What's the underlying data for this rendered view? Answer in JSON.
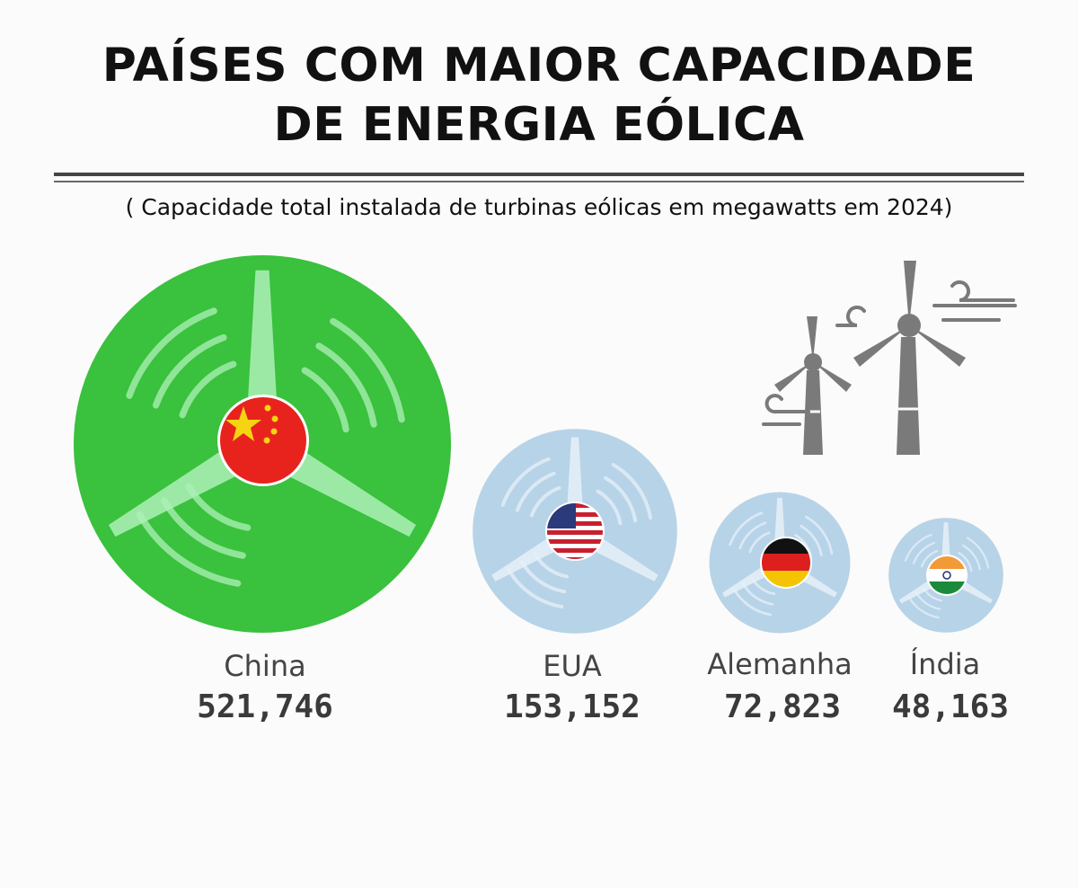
{
  "header": {
    "title_line1": "PAÍSES COM MAIOR CAPACIDADE",
    "title_line2": "DE ENERGIA EÓLICA",
    "subtitle": "( Capacidade total instalada de turbinas eólicas em megawatts em 2024)"
  },
  "chart_data": {
    "type": "bubble",
    "title": "PAÍSES COM MAIOR CAPACIDADE DE ENERGIA EÓLICA",
    "subtitle": "( Capacidade total instalada de turbinas eólicas em megawatts em 2024)",
    "unit": "megawatts",
    "categories": [
      "China",
      "EUA",
      "Alemanha",
      "Índia"
    ],
    "values": [
      521746,
      153152,
      72823,
      48163
    ],
    "value_labels": [
      "521,746",
      "153,152",
      "72,823",
      "48,163"
    ],
    "flags": [
      "china-flag",
      "usa-flag",
      "germany-flag",
      "india-flag"
    ],
    "colors": {
      "highlight_bubble": "#3ac13d",
      "other_bubbles": "#b7d3e8",
      "turbine_icon": "#7a7a7a"
    },
    "decoration": "wind-turbines-icon"
  }
}
